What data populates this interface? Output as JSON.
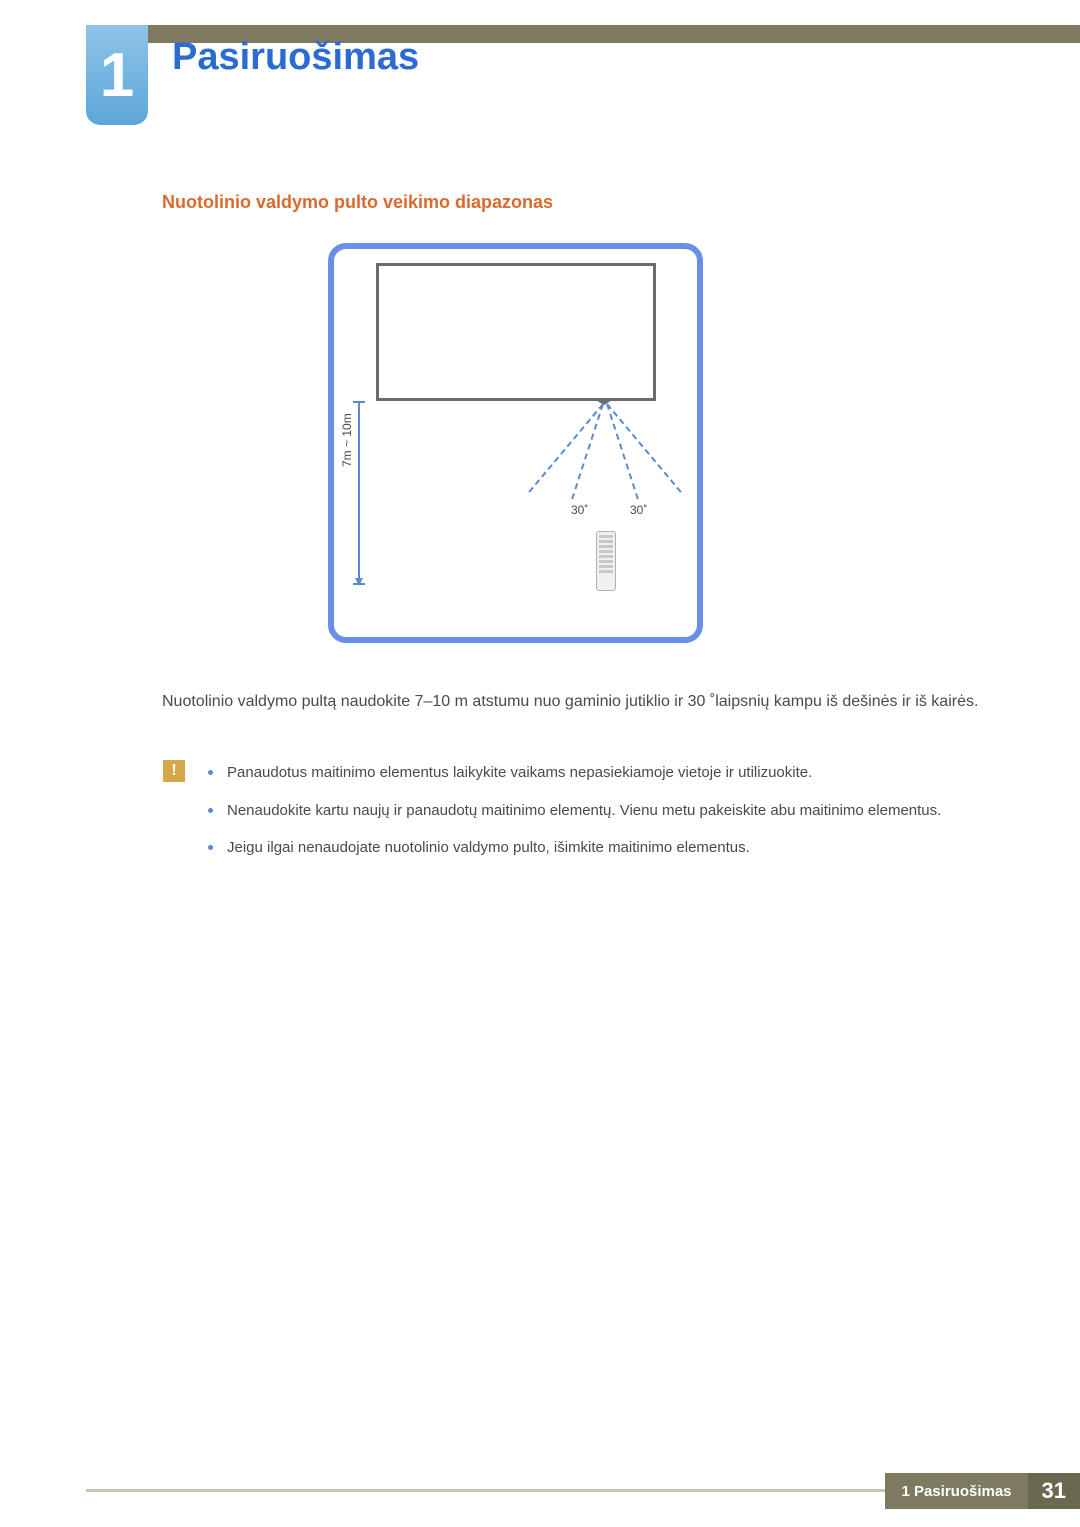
{
  "chapter": {
    "number": "1",
    "title": "Pasiruošimas"
  },
  "section": {
    "title": "Nuotolinio valdymo pulto veikimo diapazonas"
  },
  "diagram": {
    "type": "diagram",
    "border_color": "#6a8fe8",
    "tv_border_color": "#6b6b6b",
    "line_color": "#5a8ad0",
    "text_color": "#4a4a4a",
    "background_color": "#ffffff",
    "distance_label": "7m ~ 10m",
    "angle_left": "30˚",
    "angle_right": "30˚",
    "distance_range_m": [
      7,
      10
    ],
    "angle_deg": 30,
    "label_fontsize": 12
  },
  "body": {
    "paragraph": "Nuotolinio valdymo pultą naudokite 7–10 m atstumu nuo gaminio jutiklio ir 30 ˚laipsnių kampu iš dešinės ir iš kairės."
  },
  "notes": {
    "icon": "!",
    "icon_bg_color": "#d4a84a",
    "bullet_color": "#5a8ad0",
    "items": [
      "Panaudotus maitinimo elementus laikykite vaikams nepasiekiamoje vietoje ir utilizuokite.",
      "Nenaudokite kartu naujų ir panaudotų maitinimo elementų. Vienu metu pakeiskite abu maitinimo elementus.",
      "Jeigu ilgai nenaudojate nuotolinio valdymo pulto, išimkite maitinimo elementus."
    ]
  },
  "footer": {
    "chapter_ref": "1 Pasiruošimas",
    "page_number": "31",
    "bar_color": "#7d7a5f",
    "page_bg_color": "#6b6850"
  },
  "colors": {
    "top_bar": "#7d7a5f",
    "chapter_tab_gradient": [
      "#8fc4e8",
      "#5ca7d8"
    ],
    "chapter_title": "#2a6bd4",
    "section_title": "#d96b2e",
    "body_text": "#4a4a4a",
    "footer_line": "#c8c5b4"
  },
  "typography": {
    "chapter_number_fontsize": 62,
    "chapter_title_fontsize": 38,
    "section_title_fontsize": 18,
    "body_fontsize": 16,
    "bullet_fontsize": 15,
    "footer_text_fontsize": 15,
    "footer_page_fontsize": 22
  }
}
